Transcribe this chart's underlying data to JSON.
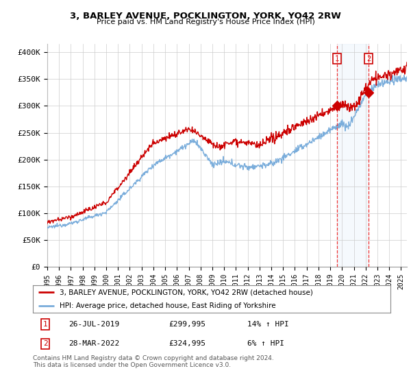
{
  "title": "3, BARLEY AVENUE, POCKLINGTON, YORK, YO42 2RW",
  "subtitle": "Price paid vs. HM Land Registry's House Price Index (HPI)",
  "ylabel_ticks": [
    "£0",
    "£50K",
    "£100K",
    "£150K",
    "£200K",
    "£250K",
    "£300K",
    "£350K",
    "£400K"
  ],
  "ytick_values": [
    0,
    50000,
    100000,
    150000,
    200000,
    250000,
    300000,
    350000,
    400000
  ],
  "ylim": [
    0,
    415000
  ],
  "xlim_start": 1995.0,
  "xlim_end": 2025.5,
  "hpi_color": "#7aaddb",
  "price_color": "#cc0000",
  "sale1_date": 2019.57,
  "sale1_price": 299995,
  "sale2_date": 2022.24,
  "sale2_price": 324995,
  "vline_color": "#ee3333",
  "bg_color": "#ffffff",
  "grid_color": "#cccccc",
  "legend_label1": "3, BARLEY AVENUE, POCKLINGTON, YORK, YO42 2RW (detached house)",
  "legend_label2": "HPI: Average price, detached house, East Riding of Yorkshire",
  "table_row1": [
    "1",
    "26-JUL-2019",
    "£299,995",
    "14% ↑ HPI"
  ],
  "table_row2": [
    "2",
    "28-MAR-2022",
    "£324,995",
    "6% ↑ HPI"
  ],
  "footnote": "Contains HM Land Registry data © Crown copyright and database right 2024.\nThis data is licensed under the Open Government Licence v3.0.",
  "marker_color": "#cc0000",
  "shading_color": "#ddeeff"
}
